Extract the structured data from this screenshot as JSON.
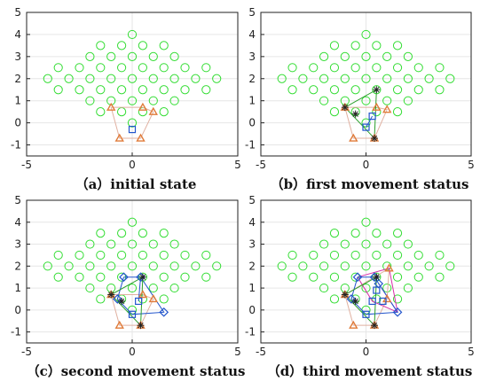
{
  "chart_data": [
    {
      "id": "a",
      "type": "scatter",
      "caption": "（a）initial state",
      "xlim": [
        -5,
        5
      ],
      "ylim": [
        -1.5,
        5
      ],
      "xticks": [
        -5,
        0,
        5
      ],
      "yticks": [
        -1,
        0,
        1,
        2,
        3,
        4,
        5
      ],
      "grid": true,
      "robots": {
        "tri": [
          [
            -1,
            0.7
          ],
          [
            0.5,
            0.7
          ],
          [
            1,
            0.5
          ],
          [
            0.4,
            -0.7
          ],
          [
            -0.6,
            -0.7
          ]
        ],
        "square": [
          [
            0,
            -0.3
          ]
        ],
        "star": [],
        "diamond": []
      },
      "edges": []
    },
    {
      "id": "b",
      "type": "scatter",
      "caption": "（b）first movement status",
      "xlim": [
        -5,
        5
      ],
      "ylim": [
        -1.5,
        5
      ],
      "xticks": [
        -5,
        0,
        5
      ],
      "yticks": [
        -1,
        0,
        1,
        2,
        3,
        4,
        5
      ],
      "grid": true,
      "robots": {
        "tri": [
          [
            -1,
            0.7
          ],
          [
            0.5,
            0.7
          ],
          [
            1,
            0.6
          ],
          [
            0.4,
            -0.7
          ],
          [
            -0.6,
            -0.7
          ]
        ],
        "square": [
          [
            0.3,
            0.3
          ],
          [
            0,
            -0.2
          ]
        ],
        "star": [
          [
            0.5,
            1.5
          ],
          [
            -0.5,
            0.4
          ],
          [
            -1,
            0.7
          ],
          [
            0.4,
            -0.7
          ]
        ],
        "diamond": []
      },
      "edges": [
        {
          "color": "#2ca02c",
          "pts": [
            [
              -1,
              0.7
            ],
            [
              0.5,
              1.5
            ],
            [
              0.4,
              -0.7
            ],
            [
              -1,
              0.7
            ]
          ]
        },
        {
          "color": "#2255cc",
          "pts": [
            [
              0.3,
              0.3
            ],
            [
              0,
              -0.2
            ]
          ]
        }
      ]
    },
    {
      "id": "c",
      "type": "scatter",
      "caption": "（c）second movement status",
      "xlim": [
        -5,
        5
      ],
      "ylim": [
        -1.5,
        5
      ],
      "xticks": [
        -5,
        0,
        5
      ],
      "yticks": [
        -1,
        0,
        1,
        2,
        3,
        4,
        5
      ],
      "grid": true,
      "robots": {
        "tri": [
          [
            -1,
            0.7
          ],
          [
            0.5,
            0.7
          ],
          [
            1,
            0.5
          ],
          [
            0.4,
            -0.7
          ],
          [
            -0.6,
            -0.7
          ]
        ],
        "square": [
          [
            0.3,
            0.4
          ],
          [
            0,
            -0.2
          ]
        ],
        "star": [
          [
            -1,
            0.7
          ],
          [
            0.5,
            1.5
          ],
          [
            -0.5,
            0.4
          ],
          [
            0.4,
            -0.7
          ]
        ],
        "diamond": [
          [
            -0.4,
            1.5
          ],
          [
            0.4,
            1.5
          ],
          [
            1.5,
            -0.1
          ],
          [
            -0.7,
            0.5
          ]
        ]
      },
      "edges": [
        {
          "color": "#2255cc",
          "pts": [
            [
              -0.4,
              1.5
            ],
            [
              0.4,
              1.5
            ],
            [
              1.5,
              -0.1
            ],
            [
              0,
              -0.2
            ],
            [
              -0.7,
              0.5
            ],
            [
              -0.4,
              1.5
            ]
          ]
        },
        {
          "color": "#2255cc",
          "pts": [
            [
              0.4,
              1.5
            ],
            [
              0.3,
              0.4
            ]
          ]
        },
        {
          "color": "#2ca02c",
          "pts": [
            [
              -1,
              0.7
            ],
            [
              0.5,
              1.5
            ],
            [
              0.4,
              -0.7
            ],
            [
              -1,
              0.7
            ]
          ]
        }
      ]
    },
    {
      "id": "d",
      "type": "scatter",
      "caption": "（d）third movement status",
      "xlim": [
        -5,
        5
      ],
      "ylim": [
        -1.5,
        5
      ],
      "xticks": [
        -5,
        0,
        5
      ],
      "yticks": [
        -1,
        0,
        1,
        2,
        3,
        4,
        5
      ],
      "grid": true,
      "robots": {
        "tri": [
          [
            -1,
            0.7
          ],
          [
            1.1,
            1.9
          ],
          [
            1,
            0.5
          ],
          [
            0.4,
            -0.7
          ],
          [
            -0.6,
            -0.7
          ]
        ],
        "square": [
          [
            0.3,
            0.4
          ],
          [
            0.5,
            0.9
          ],
          [
            0,
            -0.2
          ],
          [
            0.8,
            0.4
          ]
        ],
        "star": [
          [
            -1,
            0.7
          ],
          [
            0.5,
            1.5
          ],
          [
            -0.5,
            0.4
          ],
          [
            0.4,
            -0.7
          ]
        ],
        "diamond": [
          [
            -0.4,
            1.5
          ],
          [
            0.4,
            1.5
          ],
          [
            1.5,
            -0.1
          ],
          [
            -0.7,
            0.5
          ],
          [
            0.6,
            1.2
          ]
        ]
      },
      "edges": [
        {
          "color": "#d62fa8",
          "pts": [
            [
              -0.4,
              1.5
            ],
            [
              1.1,
              1.9
            ],
            [
              1.5,
              -0.1
            ],
            [
              0.3,
              0.4
            ],
            [
              -0.4,
              1.5
            ]
          ]
        },
        {
          "color": "#d62fa8",
          "pts": [
            [
              0.6,
              1.2
            ],
            [
              1.5,
              -0.1
            ]
          ]
        },
        {
          "color": "#2255cc",
          "pts": [
            [
              -0.4,
              1.5
            ],
            [
              0.4,
              1.5
            ],
            [
              1.5,
              -0.1
            ],
            [
              0,
              -0.2
            ],
            [
              -0.7,
              0.5
            ],
            [
              -0.4,
              1.5
            ]
          ]
        },
        {
          "color": "#2ca02c",
          "pts": [
            [
              -1,
              0.7
            ],
            [
              0.5,
              1.5
            ],
            [
              0.4,
              -0.7
            ],
            [
              -1,
              0.7
            ]
          ]
        }
      ]
    }
  ],
  "colors": {
    "grid_points": "#33dd33",
    "triangle": "#e07b39",
    "hull": "#e0b0a0",
    "square": "#2255cc",
    "star": "#222222",
    "diamond": "#2255cc",
    "axis": "#222222",
    "gridline": "#e6e6e6"
  }
}
